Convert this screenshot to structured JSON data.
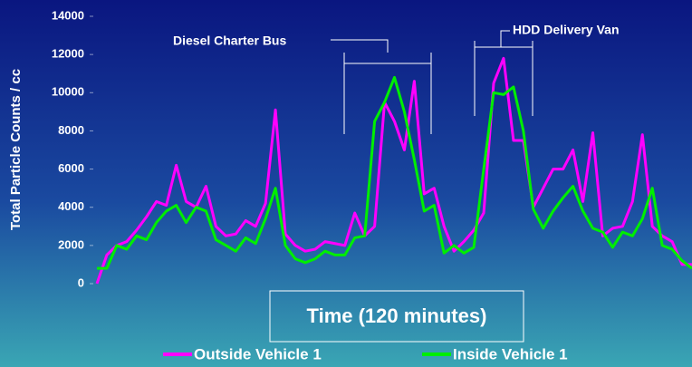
{
  "chart_data": {
    "type": "line",
    "y_label": "Total Particle Counts / cc",
    "x_label": "Time (120 minutes)",
    "x": [
      0,
      2,
      4,
      6,
      8,
      10,
      12,
      14,
      16,
      18,
      20,
      22,
      24,
      26,
      28,
      30,
      32,
      34,
      36,
      38,
      40,
      42,
      44,
      46,
      48,
      50,
      52,
      54,
      56,
      58,
      60,
      62,
      64,
      66,
      68,
      70,
      72,
      74,
      76,
      78,
      80,
      82,
      84,
      86,
      88,
      90,
      92,
      94,
      96,
      98,
      100,
      102,
      104,
      106,
      108,
      110,
      112,
      114,
      116,
      118,
      120
    ],
    "xlim": [
      0,
      120
    ],
    "ylim": [
      0,
      14000
    ],
    "yticks": [
      0,
      2000,
      4000,
      6000,
      8000,
      10000,
      12000,
      14000
    ],
    "series": [
      {
        "name": "Outside Vehicle 1",
        "color": "#ff00ff",
        "values": [
          0,
          1500,
          2000,
          2200,
          2800,
          3500,
          4300,
          4100,
          6200,
          4300,
          4000,
          5100,
          3000,
          2500,
          2600,
          3300,
          3000,
          4200,
          9100,
          2600,
          2000,
          1700,
          1800,
          2200,
          2100,
          2000,
          3700,
          2500,
          3000,
          9500,
          8500,
          7000,
          10600,
          4700,
          5000,
          3000,
          1700,
          2200,
          2800,
          3700,
          10500,
          11800,
          7500,
          7500,
          4000,
          5000,
          6000,
          6000,
          7000,
          4300,
          7900,
          2500,
          2900,
          3000,
          4300,
          7800,
          3000,
          2500,
          2200,
          1000,
          1000
        ]
      },
      {
        "name": "Inside Vehicle 1",
        "color": "#00ee00",
        "values": [
          800,
          800,
          2000,
          1800,
          2500,
          2300,
          3200,
          3800,
          4100,
          3200,
          4000,
          3800,
          2300,
          2000,
          1700,
          2400,
          2100,
          3400,
          5000,
          2000,
          1300,
          1100,
          1300,
          1700,
          1500,
          1500,
          2400,
          2500,
          8500,
          9500,
          10800,
          9000,
          6500,
          3800,
          4100,
          1600,
          2000,
          1600,
          1900,
          6000,
          10000,
          9900,
          10300,
          8000,
          3900,
          2900,
          3800,
          4500,
          5100,
          3800,
          2900,
          2700,
          1900,
          2700,
          2500,
          3400,
          5000,
          2000,
          1800,
          1200,
          800
        ]
      }
    ],
    "annotations": [
      {
        "text": "Diesel Charter Bus"
      },
      {
        "text": "HDD Delivery Van"
      }
    ]
  }
}
